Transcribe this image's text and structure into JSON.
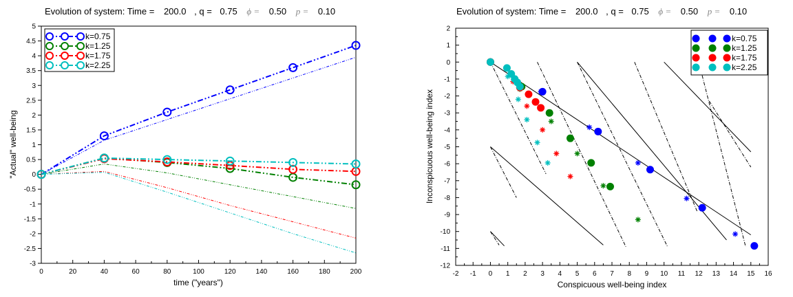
{
  "chart_data": [
    {
      "type": "line",
      "title": "Evolution of system: Time =   200.0  , q =  0.75  ϕ =  0.50  p =  0.10",
      "title_parts": {
        "prefix": "Evolution of system: Time =",
        "time": "200.0",
        "q_label": ", q =",
        "q": "0.75",
        "phi_label": "ϕ =",
        "phi": "0.50",
        "p_label": "p =",
        "p": "0.10"
      },
      "xlabel": "time (\"years\")",
      "ylabel": "\"Actual\" well-being",
      "xlim": [
        0,
        200
      ],
      "ylim": [
        -3,
        5
      ],
      "xticks": [
        "0",
        "20",
        "40",
        "60",
        "80",
        "100",
        "120",
        "140",
        "160",
        "180",
        "200"
      ],
      "yticks": [
        "-3",
        "-2.5",
        "-2",
        "-1.5",
        "-1",
        "-0.5",
        "0",
        "0.5",
        "1",
        "1.5",
        "2",
        "2.5",
        "3",
        "3.5",
        "4",
        "4.5",
        "5"
      ],
      "legend_position": "top-left",
      "x": [
        0,
        40,
        80,
        120,
        160,
        200
      ],
      "series": [
        {
          "name": "k=0.75",
          "color": "#0000ff",
          "values": [
            0,
            1.3,
            2.1,
            2.85,
            3.6,
            4.35
          ],
          "companion": {
            "x": [
              0,
              40,
              80,
              120,
              160,
              200
            ],
            "values": [
              0,
              1.15,
              1.85,
              2.55,
              3.25,
              3.95
            ]
          }
        },
        {
          "name": "k=1.25",
          "color": "#008000",
          "values": [
            0,
            0.55,
            0.4,
            0.2,
            -0.1,
            -0.35
          ],
          "companion": {
            "x": [
              0,
              40,
              80,
              120,
              160,
              200
            ],
            "values": [
              0,
              0.35,
              0.05,
              -0.35,
              -0.75,
              -1.15
            ]
          }
        },
        {
          "name": "k=1.75",
          "color": "#ff0000",
          "values": [
            0,
            0.53,
            0.42,
            0.3,
            0.17,
            0.1
          ],
          "companion": {
            "x": [
              0,
              40,
              80,
              120,
              160,
              200
            ],
            "values": [
              0,
              0.1,
              -0.45,
              -1.05,
              -1.6,
              -2.15
            ]
          }
        },
        {
          "name": "k=2.25",
          "color": "#00bfbf",
          "values": [
            0,
            0.55,
            0.5,
            0.45,
            0.4,
            0.35
          ],
          "companion": {
            "x": [
              0,
              40,
              80,
              120,
              160,
              200
            ],
            "values": [
              0,
              0.07,
              -0.6,
              -1.3,
              -2.0,
              -2.65
            ]
          }
        }
      ]
    },
    {
      "type": "scatter",
      "title": "Evolution of system: Time =   200.0  , q =  0.75  ϕ =  0.50  p =  0.10",
      "title_parts": {
        "prefix": "Evolution of system: Time =",
        "time": "200.0",
        "q_label": ", q =",
        "q": "0.75",
        "phi_label": "ϕ =",
        "phi": "0.50",
        "p_label": "p =",
        "p": "0.10"
      },
      "xlabel": "Conspicuous well-being index",
      "ylabel": "Inconspicuous well-being index",
      "xlim": [
        -2,
        16
      ],
      "ylim": [
        -12,
        2
      ],
      "xticks": [
        "-2",
        "-1",
        "0",
        "1",
        "2",
        "3",
        "4",
        "5",
        "6",
        "7",
        "8",
        "9",
        "10",
        "11",
        "12",
        "13",
        "14",
        "15",
        "16"
      ],
      "yticks": [
        "-12",
        "-11",
        "-10",
        "-9",
        "-8",
        "-7",
        "-6",
        "-5",
        "-4",
        "-3",
        "-2",
        "-1",
        "0",
        "1",
        "2"
      ],
      "legend_position": "top-right",
      "series": [
        {
          "name": "k=0.75",
          "color": "#0000ff",
          "points": [
            [
              0,
              0
            ],
            [
              3.0,
              -1.75
            ],
            [
              6.2,
              -4.1
            ],
            [
              9.2,
              -6.35
            ],
            [
              12.2,
              -8.6
            ],
            [
              15.2,
              -10.85
            ]
          ],
          "stars": [
            [
              2.9,
              -1.75
            ],
            [
              5.7,
              -3.85
            ],
            [
              8.5,
              -5.95
            ],
            [
              11.3,
              -8.05
            ],
            [
              14.1,
              -10.15
            ]
          ]
        },
        {
          "name": "k=1.25",
          "color": "#008000",
          "points": [
            [
              0,
              0
            ],
            [
              1.8,
              -1.45
            ],
            [
              3.4,
              -3.0
            ],
            [
              4.6,
              -4.5
            ],
            [
              5.8,
              -5.95
            ],
            [
              6.9,
              -7.35
            ]
          ],
          "stars": [
            [
              1.7,
              -1.6
            ],
            [
              3.5,
              -3.5
            ],
            [
              5.0,
              -5.4
            ],
            [
              6.5,
              -7.3
            ],
            [
              8.5,
              -9.3
            ]
          ]
        },
        {
          "name": "k=1.75",
          "color": "#ff0000",
          "points": [
            [
              0,
              0
            ],
            [
              1.7,
              -1.5
            ],
            [
              2.2,
              -1.9
            ],
            [
              2.6,
              -2.35
            ],
            [
              2.9,
              -2.7
            ]
          ],
          "stars": [
            [
              1.3,
              -1.15
            ],
            [
              2.1,
              -2.6
            ],
            [
              3.0,
              -4.0
            ],
            [
              3.8,
              -5.4
            ],
            [
              4.6,
              -6.75
            ]
          ]
        },
        {
          "name": "k=2.25",
          "color": "#00bfbf",
          "points": [
            [
              0,
              0
            ],
            [
              0.95,
              -0.35
            ],
            [
              1.2,
              -0.7
            ],
            [
              1.4,
              -1.0
            ],
            [
              1.55,
              -1.2
            ],
            [
              1.7,
              -1.45
            ]
          ],
          "stars": [
            [
              1.0,
              -0.85
            ],
            [
              1.6,
              -2.2
            ],
            [
              2.1,
              -3.4
            ],
            [
              2.7,
              -4.75
            ],
            [
              3.3,
              -5.95
            ]
          ]
        }
      ],
      "reference_lines": [
        {
          "style": "solid",
          "from": [
            0,
            0
          ],
          "to": [
            15,
            -10.2
          ]
        },
        {
          "style": "dashdot",
          "from": [
            0,
            0
          ],
          "to": [
            3.2,
            -6.6
          ]
        },
        {
          "style": "solid",
          "from": [
            0,
            -5
          ],
          "to": [
            6.5,
            -10.8
          ]
        },
        {
          "style": "dashdot",
          "from": [
            0,
            -5
          ],
          "to": [
            1.5,
            -8.0
          ]
        },
        {
          "style": "solid",
          "from": [
            0,
            -10
          ],
          "to": [
            0.8,
            -10.85
          ]
        },
        {
          "style": "dashdot",
          "from": [
            0,
            -10
          ],
          "to": [
            0.5,
            -10.8
          ]
        },
        {
          "style": "dashdot",
          "from": [
            2.7,
            0
          ],
          "to": [
            7.8,
            -10.9
          ]
        },
        {
          "style": "solid",
          "from": [
            5,
            0
          ],
          "to": [
            13.6,
            -10.5
          ]
        },
        {
          "style": "dashdot",
          "from": [
            5,
            0
          ],
          "to": [
            10.2,
            -10.9
          ]
        },
        {
          "style": "dashdot",
          "from": [
            8.3,
            0
          ],
          "to": [
            11.9,
            -8.8
          ]
        },
        {
          "style": "solid",
          "from": [
            10,
            0
          ],
          "to": [
            15,
            -5.3
          ]
        },
        {
          "style": "dashdot",
          "from": [
            12,
            0
          ],
          "to": [
            14.7,
            -10.9
          ]
        },
        {
          "style": "dashdot",
          "from": [
            12.6,
            -2.3
          ],
          "to": [
            15,
            -6.2
          ]
        }
      ]
    }
  ]
}
